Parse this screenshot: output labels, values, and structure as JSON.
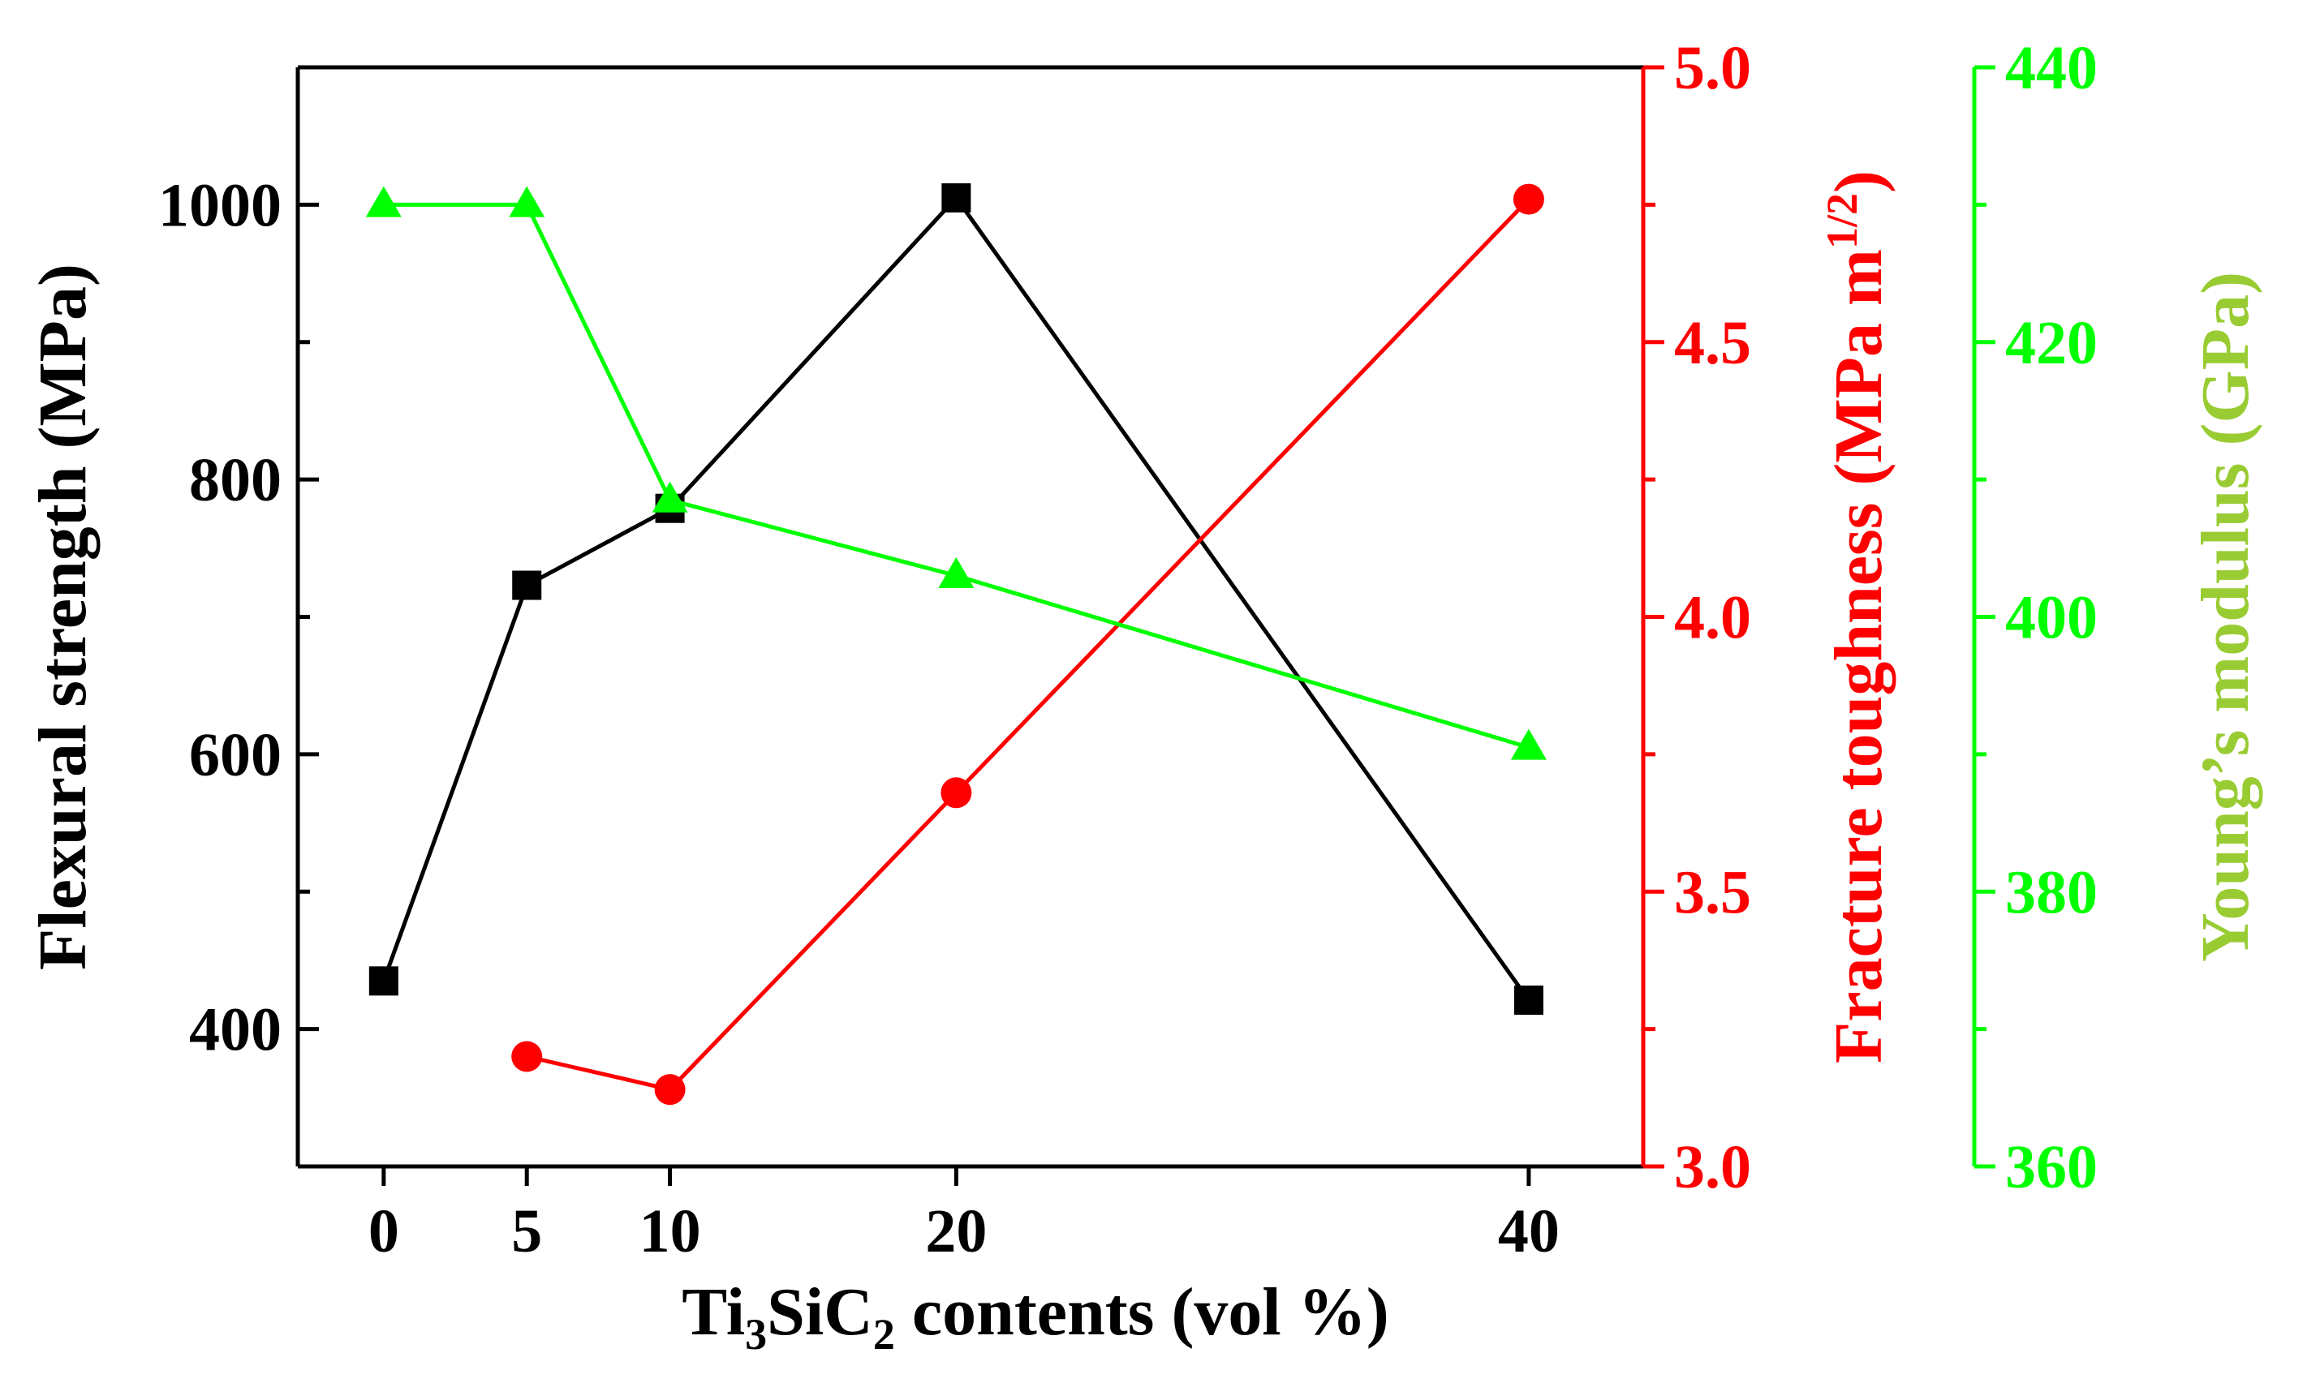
{
  "chart_data": {
    "type": "line",
    "x": [
      0,
      5,
      10,
      20,
      40
    ],
    "x_tick_labels": [
      "0",
      "5",
      "10",
      "20",
      "40"
    ],
    "xlabel": {
      "prefix": "Ti",
      "sub1": "3",
      "mid": "SiC",
      "sub2": "2",
      "suffix": " contents (vol %)"
    },
    "xlim": [
      -3,
      44
    ],
    "axes": {
      "left": {
        "label": "Flexural strength (MPa)",
        "ylim": [
          300,
          1100
        ],
        "ticks": [
          400,
          600,
          800,
          1000
        ],
        "tick_labels": [
          "400",
          "600",
          "800",
          "1000"
        ],
        "color": "#000000"
      },
      "right1": {
        "label_main": "Fracture toughness (MPa m",
        "label_sup": "1/2",
        "label_end": ")",
        "ylim": [
          3.0,
          5.0
        ],
        "ticks": [
          3.0,
          3.5,
          4.0,
          4.5,
          5.0
        ],
        "tick_labels": [
          "3.0",
          "3.5",
          "4.0",
          "4.5",
          "5.0"
        ],
        "color": "#ff0000"
      },
      "right2": {
        "label": "Young’s modulus (GPa)",
        "ylim": [
          360,
          440
        ],
        "ticks": [
          360,
          380,
          400,
          420,
          440
        ],
        "tick_labels": [
          "360",
          "380",
          "400",
          "420",
          "440"
        ],
        "color": "#00ff00",
        "label_color": "#99cc33"
      }
    },
    "series": [
      {
        "name": "Flexural strength",
        "axis": "left",
        "marker": "square",
        "color": "#000000",
        "x": [
          0,
          5,
          10,
          20,
          40
        ],
        "values": [
          435,
          723,
          779,
          1005,
          421
        ]
      },
      {
        "name": "Fracture toughness",
        "axis": "right1",
        "marker": "circle",
        "color": "#ff0000",
        "x": [
          5,
          10,
          20,
          40
        ],
        "values": [
          3.2,
          3.14,
          3.68,
          4.76
        ]
      },
      {
        "name": "Young's modulus",
        "axis": "right2",
        "marker": "triangle",
        "color": "#00ff00",
        "x": [
          0,
          5,
          10,
          20,
          40
        ],
        "values": [
          430,
          430,
          408.5,
          403,
          390.5
        ]
      }
    ]
  }
}
